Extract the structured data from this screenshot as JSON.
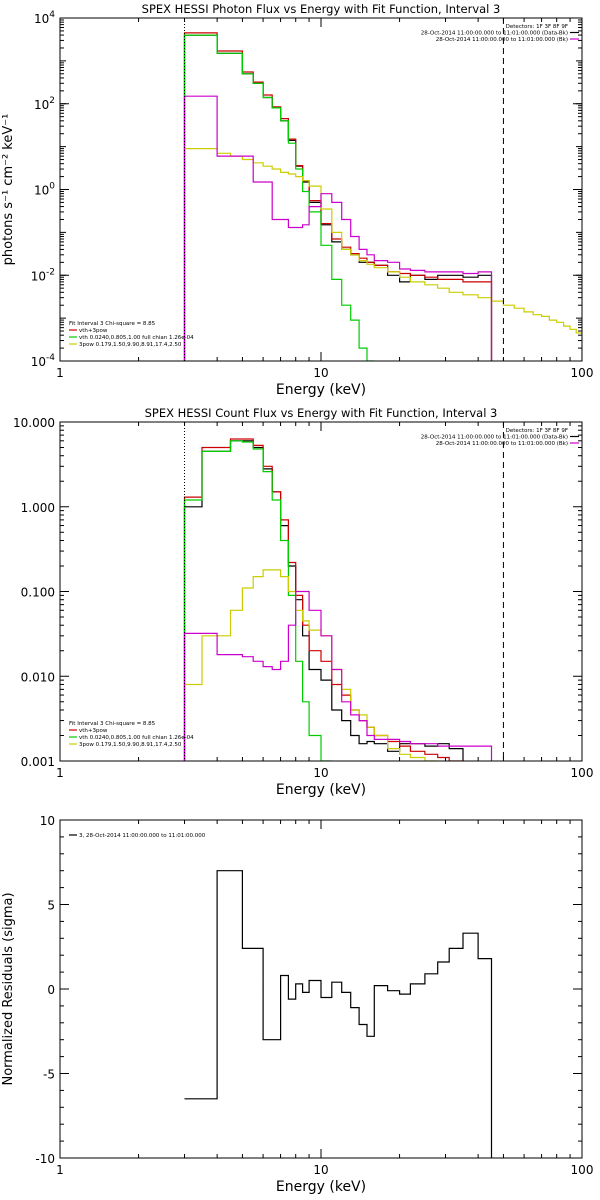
{
  "chart_data": [
    {
      "type": "line",
      "title": "SPEX HESSI Photon Flux vs Energy with Fit Function, Interval 3",
      "xlabel": "Energy (keV)",
      "ylabel": "photons s⁻¹ cm⁻² keV⁻¹",
      "xscale": "log",
      "yscale": "log",
      "xlim": [
        1,
        100
      ],
      "ylim": [
        0.0001,
        10000
      ],
      "xticks": [
        {
          "v": 1,
          "label": "1"
        },
        {
          "v": 10,
          "label": "10"
        },
        {
          "v": 100,
          "label": "100"
        }
      ],
      "yticks": [
        {
          "v": 0.0001,
          "base": "10",
          "exp": "-4"
        },
        {
          "v": 0.01,
          "base": "10",
          "exp": "-2"
        },
        {
          "v": 1,
          "base": "10",
          "exp": "0"
        },
        {
          "v": 100,
          "base": "10",
          "exp": "2"
        },
        {
          "v": 10000,
          "base": "10",
          "exp": "4"
        }
      ],
      "legend_tr": [
        {
          "text": "Detectors: 1F 3F 8F 9F",
          "color": ""
        },
        {
          "text": "28-Oct-2014 11:00:00.000 to 11:01:00.000 (Data-Bk)",
          "color": "#000000"
        },
        {
          "text": "28-Oct-2014 11:00:00.000 to 11:01:00.000 (Bk)",
          "color": "#cc00cc"
        }
      ],
      "legend_bl": [
        {
          "text": "Fit Interval 3   Chi-square = 8.85",
          "color": ""
        },
        {
          "text": "vth+3pow",
          "color": "#cc0000"
        },
        {
          "text": "vth 0.0240,0.805,1.00  full chian 1.26e-04",
          "color": "#00cc00"
        },
        {
          "text": "3pow 0.179,1.50,9.90,8.91,17.4,2.50",
          "color": "#cccc00"
        }
      ],
      "vlines": [
        {
          "x": 3,
          "style": "dotted",
          "color": "#000000"
        },
        {
          "x": 50,
          "style": "dashed",
          "color": "#000000"
        }
      ],
      "edges": [
        3,
        3.5,
        4,
        4.5,
        5,
        5.5,
        6,
        6.5,
        7,
        7.5,
        8,
        8.5,
        9,
        10,
        11,
        12,
        13,
        14,
        15,
        16,
        18,
        20,
        22,
        25,
        28,
        31,
        35,
        40,
        45,
        50
      ],
      "series": [
        {
          "name": "Data-Bk",
          "color": "#000000",
          "start": 0,
          "values": [
            4000,
            4000,
            1500,
            1500,
            500,
            300,
            140,
            80,
            40,
            14,
            3.5,
            1.5,
            0.5,
            0.15,
            0.06,
            0.04,
            0.03,
            0.02,
            0.02,
            0.017,
            0.01,
            0.007,
            0.01,
            0.008,
            0.01,
            0.01,
            0.009,
            0.01
          ]
        },
        {
          "name": "vth+3pow",
          "color": "#cc0000",
          "start": 0,
          "values": [
            4500,
            4500,
            1700,
            1700,
            550,
            320,
            160,
            85,
            45,
            15,
            3.6,
            1.6,
            0.55,
            0.16,
            0.07,
            0.045,
            0.032,
            0.025,
            0.02,
            0.017,
            0.012,
            0.011,
            0.01,
            0.009,
            0.008,
            0.008,
            0.007,
            0.007
          ]
        },
        {
          "name": "vth",
          "color": "#00cc00",
          "start": 0,
          "values": [
            4000,
            4000,
            1500,
            1500,
            500,
            300,
            140,
            80,
            40,
            12,
            3.0,
            0.9,
            0.3,
            0.05,
            0.008,
            0.002,
            0.0009,
            0.0002,
            3e-05
          ]
        },
        {
          "name": "3pow",
          "color": "#cccc00",
          "start": 0,
          "values": [
            9,
            9,
            7,
            6,
            5,
            4.2,
            3.5,
            3,
            2.5,
            2.3,
            2,
            1.6,
            1.2,
            0.35,
            0.1,
            0.04,
            0.03,
            0.022,
            0.018,
            0.015,
            0.012,
            0.009,
            0.007,
            0.006,
            0.005,
            0.004,
            0.0035,
            0.003,
            0.0025,
            0.002,
            0.0017,
            0.0014,
            0.0012,
            0.0011,
            0.0009,
            0.0008,
            0.00065,
            0.00055,
            0.00045,
            0.0004
          ]
        },
        {
          "name": "Bk",
          "color": "#cc00cc",
          "start": 0,
          "values": [
            150,
            150,
            6,
            6,
            6,
            1.5,
            1.5,
            0.2,
            0.2,
            0.13,
            0.13,
            0.15,
            0.4,
            0.8,
            0.5,
            0.2,
            0.08,
            0.04,
            0.03,
            0.022,
            0.02,
            0.014,
            0.013,
            0.012,
            0.012,
            0.012,
            0.011,
            0.012
          ]
        }
      ],
      "extra_edges_3pow": [
        50,
        55,
        60,
        65,
        70,
        75,
        80,
        85,
        90,
        95,
        100
      ]
    },
    {
      "type": "line",
      "title": "SPEX HESSI Count Flux vs Energy with Fit Function, Interval 3",
      "xlabel": "Energy (keV)",
      "ylabel": "",
      "xscale": "log",
      "yscale": "log",
      "xlim": [
        1,
        100
      ],
      "ylim": [
        0.001,
        10
      ],
      "xticks": [
        {
          "v": 1,
          "label": "1"
        },
        {
          "v": 10,
          "label": "10"
        },
        {
          "v": 100,
          "label": "100"
        }
      ],
      "yticks": [
        {
          "v": 0.001,
          "label": "0.001"
        },
        {
          "v": 0.01,
          "label": "0.010"
        },
        {
          "v": 0.1,
          "label": "0.100"
        },
        {
          "v": 1,
          "label": "1.000"
        },
        {
          "v": 10,
          "label": "10.000"
        }
      ],
      "legend_tr": [
        {
          "text": "Detectors: 1F 3F 8F 9F",
          "color": ""
        },
        {
          "text": "28-Oct-2014 11:00:00.000 to 11:01:00.000 (Data-Bk)",
          "color": "#000000"
        },
        {
          "text": "28-Oct-2014 11:00:00.000 to 11:01:00.000 (Bk)",
          "color": "#cc00cc"
        }
      ],
      "legend_bl": [
        {
          "text": "Fit Interval 3   Chi-square = 8.85",
          "color": ""
        },
        {
          "text": "vth+3pow",
          "color": "#cc0000"
        },
        {
          "text": "vth 0.0240,0.805,1.00  full chian 1.26e-04",
          "color": "#00cc00"
        },
        {
          "text": "3pow 0.179,1.50,9.90,8.91,17.4,2.50",
          "color": "#cccc00"
        }
      ],
      "vlines": [
        {
          "x": 3,
          "style": "dotted",
          "color": "#000000"
        },
        {
          "x": 50,
          "style": "dashed",
          "color": "#000000"
        }
      ],
      "edges": [
        3,
        3.5,
        4,
        4.5,
        5,
        5.5,
        6,
        6.5,
        7,
        7.5,
        8,
        8.5,
        9,
        10,
        11,
        12,
        13,
        14,
        15,
        16,
        18,
        20,
        22,
        25,
        28,
        31,
        35,
        40,
        45,
        50
      ],
      "series": [
        {
          "name": "Data-Bk",
          "color": "#000000",
          "start": 0,
          "values": [
            1.0,
            4.5,
            4.5,
            6,
            6,
            5,
            2.8,
            1.5,
            0.6,
            0.2,
            0.08,
            0.03,
            0.012,
            0.009,
            0.004,
            0.003,
            0.002,
            0.0016,
            0.0017,
            0.0016,
            0.0013,
            0.0016,
            0.0016,
            0.0015,
            0.0016,
            0.0014
          ]
        },
        {
          "name": "vth+3pow",
          "color": "#cc0000",
          "start": 0,
          "values": [
            1.3,
            5,
            5,
            6.3,
            6.3,
            5.3,
            3,
            1.5,
            0.7,
            0.22,
            0.09,
            0.04,
            0.02,
            0.015,
            0.008,
            0.006,
            0.004,
            0.003,
            0.0025,
            0.002,
            0.0017,
            0.0015,
            0.0013,
            0.0012,
            0.0011,
            0.001
          ]
        },
        {
          "name": "vth",
          "color": "#00cc00",
          "start": 0,
          "values": [
            1.2,
            4.5,
            4.5,
            6,
            5.8,
            4.8,
            2.6,
            1.2,
            0.4,
            0.09,
            0.015,
            0.005,
            0.002,
            0.0009
          ]
        },
        {
          "name": "3pow",
          "color": "#cccc00",
          "start": 0,
          "values": [
            0.008,
            0.03,
            0.03,
            0.06,
            0.11,
            0.15,
            0.18,
            0.18,
            0.15,
            0.1,
            0.06,
            0.045,
            0.035,
            0.03,
            0.012,
            0.007,
            0.004,
            0.0035,
            0.0025,
            0.002,
            0.0014,
            0.0012,
            0.0011,
            0.0009
          ]
        },
        {
          "name": "Bk",
          "color": "#cc00cc",
          "start": 0,
          "values": [
            0.032,
            0.032,
            0.018,
            0.018,
            0.017,
            0.015,
            0.013,
            0.012,
            0.015,
            0.04,
            0.1,
            0.1,
            0.06,
            0.03,
            0.012,
            0.005,
            0.0035,
            0.003,
            0.002,
            0.0018,
            0.0018,
            0.0017,
            0.0016,
            0.0016,
            0.0015,
            0.0015,
            0.0015,
            0.0015
          ]
        }
      ]
    },
    {
      "type": "line",
      "title": "",
      "xlabel": "Energy (keV)",
      "ylabel": "Normalized Residuals (sigma)",
      "xscale": "log",
      "yscale": "linear",
      "xlim": [
        1,
        100
      ],
      "ylim": [
        -10,
        10
      ],
      "xticks": [
        {
          "v": 1,
          "label": "1"
        },
        {
          "v": 10,
          "label": "10"
        },
        {
          "v": 100,
          "label": "100"
        }
      ],
      "yticks": [
        {
          "v": -10,
          "label": "-10"
        },
        {
          "v": -5,
          "label": "-5"
        },
        {
          "v": 0,
          "label": "0"
        },
        {
          "v": 5,
          "label": "5"
        },
        {
          "v": 10,
          "label": "10"
        }
      ],
      "legend_tl": [
        {
          "text": "3, 28-Oct-2014 11:00:00.000 to 11:01:00.000",
          "color": "#000000"
        }
      ],
      "edges": [
        3,
        3.5,
        4,
        4.5,
        5,
        5.5,
        6,
        6.5,
        7,
        7.5,
        8,
        8.5,
        9,
        10,
        11,
        12,
        13,
        14,
        15,
        16,
        18,
        20,
        22,
        25,
        28,
        31,
        35,
        40,
        45,
        50
      ],
      "series": [
        {
          "name": "residuals",
          "color": "#000000",
          "start": 0,
          "values": [
            -6.5,
            -6.5,
            7,
            7,
            2.4,
            2.4,
            -3,
            -3,
            0.8,
            -0.6,
            0.3,
            -0.2,
            0.5,
            -0.5,
            0.4,
            -0.2,
            -1.1,
            -2.1,
            -2.8,
            0.2,
            -0.1,
            -0.3,
            0.3,
            0.9,
            1.6,
            2.4,
            3.3,
            1.8
          ]
        }
      ]
    }
  ]
}
